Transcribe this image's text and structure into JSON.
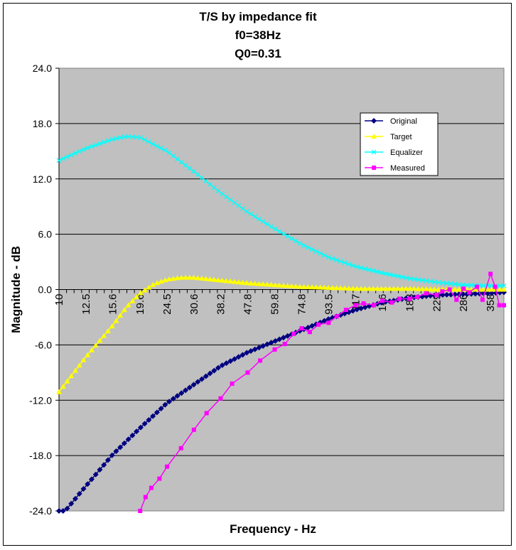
{
  "chart_data": {
    "type": "line",
    "title": [
      "T/S by impedance fit",
      "f0=38Hz",
      "Q0=0.31"
    ],
    "xlabel": "Frequency - Hz",
    "ylabel": "Magnitude - dB",
    "x_scale": "log",
    "xlim": [
      10,
      400
    ],
    "ylim": [
      -24,
      24
    ],
    "y_ticks": [
      24.0,
      18.0,
      12.0,
      6.0,
      0.0,
      -6.0,
      -12.0,
      -18.0,
      -24.0
    ],
    "y_tick_labels": [
      "24.0",
      "18.0",
      "12.0",
      "6.0",
      "0.0",
      "-6.0",
      "-12.0",
      "-18.0",
      "-24.0"
    ],
    "x_ticks": [
      10,
      12.5,
      15.6,
      19.6,
      24.5,
      30.6,
      38.2,
      47.8,
      59.8,
      74.8,
      93.5,
      117,
      146,
      183,
      229,
      286,
      358
    ],
    "x_tick_labels": [
      "10",
      "12.5",
      "15.6",
      "19.6",
      "24.5",
      "30.6",
      "38.2",
      "47.8",
      "59.8",
      "74.8",
      "93.5",
      "117",
      "146",
      "183",
      "229",
      "286",
      "358"
    ],
    "grid": {
      "horizontal": true,
      "vertical": false
    },
    "plot_background": "#c0c0c0",
    "legend_position": "upper-right",
    "series": [
      {
        "name": "Original",
        "color": "#000080",
        "marker": "diamond",
        "x": [
          10,
          12.5,
          15.6,
          19.6,
          24.5,
          30.6,
          38.2,
          47.8,
          59.8,
          74.8,
          93.5,
          117,
          146,
          183,
          229,
          286,
          358,
          400
        ],
        "y": [
          -24.8,
          -21.3,
          -17.9,
          -15.0,
          -12.3,
          -10.3,
          -8.3,
          -6.8,
          -5.6,
          -4.4,
          -3.2,
          -2.2,
          -1.4,
          -0.9,
          -0.6,
          -0.5,
          -0.4,
          -0.3
        ]
      },
      {
        "name": "Target",
        "color": "#ffff00",
        "marker": "triangle",
        "x": [
          10,
          12.5,
          15.6,
          17.5,
          19.6,
          22,
          24.5,
          27.5,
          30.6,
          38.2,
          47.8,
          59.8,
          74.8,
          93.5,
          117,
          146,
          183,
          229,
          286,
          358,
          400
        ],
        "y": [
          -11.1,
          -7.3,
          -3.9,
          -1.9,
          -0.4,
          0.6,
          1.1,
          1.3,
          1.3,
          1.0,
          0.7,
          0.5,
          0.3,
          0.2,
          0.1,
          0.1,
          0.1,
          0.0,
          0.0,
          0.0,
          0.0
        ]
      },
      {
        "name": "Equalizer",
        "color": "#00ffff",
        "marker": "x",
        "x": [
          10,
          12.5,
          15.6,
          17.5,
          19.6,
          24.5,
          30.6,
          38.2,
          47.8,
          59.8,
          74.8,
          93.5,
          117,
          146,
          183,
          229,
          286,
          358,
          400
        ],
        "y": [
          14.0,
          15.3,
          16.3,
          16.6,
          16.5,
          15.0,
          12.8,
          10.5,
          8.4,
          6.6,
          4.9,
          3.5,
          2.5,
          1.8,
          1.2,
          0.8,
          0.5,
          0.4,
          0.4
        ]
      },
      {
        "name": "Measured",
        "color": "#ff00ff",
        "marker": "square",
        "x": [
          19.6,
          20.5,
          21.5,
          23,
          24.5,
          27.5,
          30.6,
          34,
          38.2,
          42,
          47.8,
          53,
          59.8,
          65,
          70,
          74.8,
          80,
          86,
          93.5,
          100,
          108,
          117,
          125,
          136,
          146,
          158,
          168,
          183,
          195,
          210,
          229,
          240,
          255,
          270,
          286,
          300,
          320,
          335,
          358,
          372,
          385,
          400
        ],
        "y": [
          -24.0,
          -22.5,
          -21.5,
          -20.5,
          -19.2,
          -17.2,
          -15.2,
          -13.4,
          -11.8,
          -10.2,
          -9.0,
          -7.7,
          -6.5,
          -5.9,
          -4.8,
          -4.2,
          -4.6,
          -3.8,
          -3.6,
          -2.9,
          -2.2,
          -1.7,
          -1.5,
          -1.7,
          -1.2,
          -1.4,
          -1.0,
          -1.0,
          -0.8,
          -0.4,
          -0.6,
          -0.2,
          0.0,
          -1.1,
          0.1,
          -0.3,
          0.3,
          -1.1,
          1.7,
          0.3,
          -1.7,
          -1.7
        ]
      }
    ]
  }
}
